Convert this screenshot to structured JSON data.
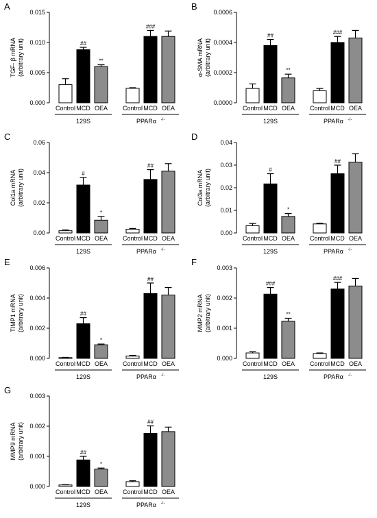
{
  "figure": {
    "categories": [
      "Control",
      "MCD",
      "OEA"
    ],
    "group_labels": {
      "left": "129S",
      "right_main": "PPARα",
      "right_sup": "-/-"
    },
    "bar_colors": {
      "Control": "#ffffff",
      "MCD": "#000000",
      "OEA": "#8c8c8c"
    },
    "ylabel_unit": "(arbitrary unit)"
  },
  "chart_data": [
    {
      "type": "bar",
      "panel": "A",
      "ylabel": "TGF- β mRNA",
      "ylim": [
        0,
        0.015
      ],
      "yticks": [
        "0.000",
        "0.005",
        "0.010",
        "0.015"
      ],
      "tick_values": [
        0,
        0.005,
        0.01,
        0.015
      ],
      "groups": [
        {
          "name": "129S",
          "values": [
            0.003,
            0.0088,
            0.006
          ],
          "errors": [
            0.001,
            0.0004,
            0.0003
          ],
          "annotations": [
            "",
            "##",
            "**"
          ]
        },
        {
          "name": "PPARα-/-",
          "values": [
            0.0024,
            0.011,
            0.011
          ],
          "errors": [
            0.0001,
            0.001,
            0.0009
          ],
          "annotations": [
            "",
            "###",
            ""
          ]
        }
      ]
    },
    {
      "type": "bar",
      "panel": "B",
      "ylabel": "α-SMA mRNA",
      "ylim": [
        0,
        0.0006
      ],
      "yticks": [
        "0.0000",
        "0.0002",
        "0.0004",
        "0.0006"
      ],
      "tick_values": [
        0,
        0.0002,
        0.0004,
        0.0006
      ],
      "groups": [
        {
          "name": "129S",
          "values": [
            9.5e-05,
            0.00038,
            0.000165
          ],
          "errors": [
            3e-05,
            4e-05,
            2.5e-05
          ],
          "annotations": [
            "",
            "##",
            "**"
          ]
        },
        {
          "name": "PPARα-/-",
          "values": [
            8e-05,
            0.0004,
            0.00043
          ],
          "errors": [
            1.5e-05,
            4e-05,
            5e-05
          ],
          "annotations": [
            "",
            "###",
            ""
          ]
        }
      ]
    },
    {
      "type": "bar",
      "panel": "C",
      "ylabel": "Col1a mRNA",
      "ylim": [
        0,
        0.06
      ],
      "yticks": [
        "0.00",
        "0.02",
        "0.04",
        "0.06"
      ],
      "tick_values": [
        0,
        0.02,
        0.04,
        0.06
      ],
      "groups": [
        {
          "name": "129S",
          "values": [
            0.0015,
            0.0318,
            0.0085
          ],
          "errors": [
            0.0005,
            0.005,
            0.0025
          ],
          "annotations": [
            "",
            "#",
            "*"
          ]
        },
        {
          "name": "PPARα-/-",
          "values": [
            0.0025,
            0.0355,
            0.041
          ],
          "errors": [
            0.0005,
            0.0065,
            0.005
          ],
          "annotations": [
            "",
            "##",
            ""
          ]
        }
      ]
    },
    {
      "type": "bar",
      "panel": "D",
      "ylabel": "Col3a mRNA",
      "ylim": [
        0,
        0.04
      ],
      "yticks": [
        "0.00",
        "0.01",
        "0.02",
        "0.03",
        "0.04"
      ],
      "tick_values": [
        0,
        0.01,
        0.02,
        0.03,
        0.04
      ],
      "groups": [
        {
          "name": "129S",
          "values": [
            0.0032,
            0.0217,
            0.0073
          ],
          "errors": [
            0.001,
            0.0045,
            0.0013
          ],
          "annotations": [
            "",
            "#",
            "*"
          ]
        },
        {
          "name": "PPARα-/-",
          "values": [
            0.004,
            0.0262,
            0.0313
          ],
          "errors": [
            0.0003,
            0.0038,
            0.0037
          ],
          "annotations": [
            "",
            "##",
            ""
          ]
        }
      ]
    },
    {
      "type": "bar",
      "panel": "E",
      "ylabel": "TIMP1 mRNA",
      "ylim": [
        0,
        0.006
      ],
      "yticks": [
        "0.000",
        "0.002",
        "0.004",
        "0.006"
      ],
      "tick_values": [
        0,
        0.002,
        0.004,
        0.006
      ],
      "groups": [
        {
          "name": "129S",
          "values": [
            5e-05,
            0.0023,
            0.0009
          ],
          "errors": [
            2e-05,
            0.0004,
            5e-05
          ],
          "annotations": [
            "",
            "##",
            "*"
          ]
        },
        {
          "name": "PPARα-/-",
          "values": [
            0.00015,
            0.0043,
            0.0042
          ],
          "errors": [
            5e-05,
            0.0007,
            0.0005
          ],
          "annotations": [
            "",
            "##",
            ""
          ]
        }
      ]
    },
    {
      "type": "bar",
      "panel": "F",
      "ylabel": "MMP2 mRNA",
      "ylim": [
        0,
        0.003
      ],
      "yticks": [
        "0.000",
        "0.001",
        "0.002",
        "0.003"
      ],
      "tick_values": [
        0,
        0.001,
        0.002,
        0.003
      ],
      "groups": [
        {
          "name": "129S",
          "values": [
            0.00018,
            0.00213,
            0.00123
          ],
          "errors": [
            4e-05,
            0.00022,
            0.0001
          ],
          "annotations": [
            "",
            "###",
            "**"
          ]
        },
        {
          "name": "PPARα-/-",
          "values": [
            0.00016,
            0.0023,
            0.0024
          ],
          "errors": [
            2e-05,
            0.00022,
            0.00025
          ],
          "annotations": [
            "",
            "###",
            ""
          ]
        }
      ]
    },
    {
      "type": "bar",
      "panel": "G",
      "ylabel": "MMP9 mRNA",
      "ylim": [
        0,
        0.003
      ],
      "yticks": [
        "0.000",
        "0.001",
        "0.002",
        "0.003"
      ],
      "tick_values": [
        0,
        0.001,
        0.002,
        0.003
      ],
      "groups": [
        {
          "name": "129S",
          "values": [
            5e-05,
            0.00088,
            0.00058
          ],
          "errors": [
            1e-05,
            0.00012,
            3e-05
          ],
          "annotations": [
            "",
            "##",
            "*"
          ]
        },
        {
          "name": "PPARα-/-",
          "values": [
            0.00016,
            0.00176,
            0.00182
          ],
          "errors": [
            3e-05,
            0.00025,
            0.00015
          ],
          "annotations": [
            "",
            "##",
            ""
          ]
        }
      ]
    }
  ]
}
